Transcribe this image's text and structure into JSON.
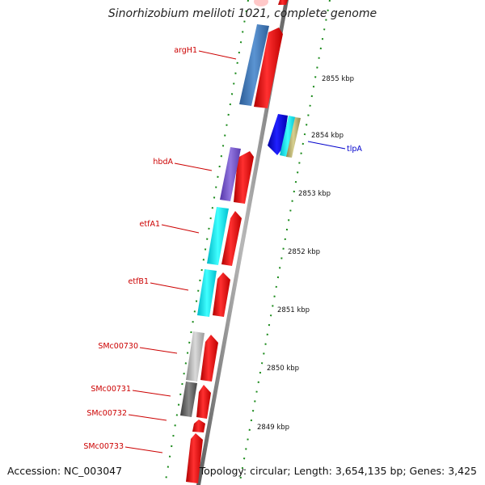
{
  "title": "Sinorhizobium meliloti 1021, complete genome",
  "accession_text": "Accession: NC_003047",
  "summary_text": "Topology: circular; Length: 3,654,135 bp; Genes: 3,425",
  "colors": {
    "forward_gene": "#ff1a1a",
    "reverse_gene": "#1010e0",
    "backbone": "#8a8a8a",
    "tick_marks": "#1a7a1a",
    "label_forward": "#cc0000",
    "label_reverse": "#0000cc",
    "argH1": "#4a82c0",
    "hbdA": "#7f5fd0",
    "etfA1": "#22f0f0",
    "etfB1": "#22f0f0",
    "SMc00730": "#bdbdbd",
    "SMc00731": "#6e6e6e",
    "tlpA": "#b8b070"
  },
  "ruler": [
    "2855 kbp",
    "2854 kbp",
    "2853 kbp",
    "2852 kbp",
    "2851 kbp",
    "2850 kbp",
    "2849 kbp"
  ],
  "labels": {
    "argH1": "argH1",
    "hbdA": "hbdA",
    "etfA1": "etfA1",
    "etfB1": "etfB1",
    "SMc00730": "SMc00730",
    "SMc00731": "SMc00731",
    "SMc00732": "SMc00732",
    "SMc00733": "SMc00733",
    "tlpA": "tlpA"
  }
}
